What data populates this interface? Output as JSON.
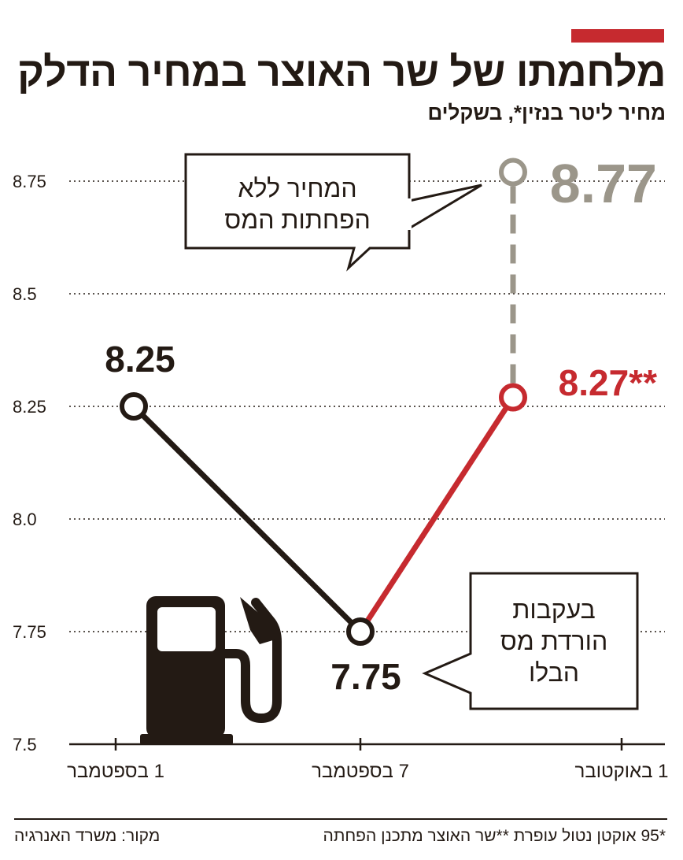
{
  "header": {
    "title": "מלחמתו של שר האוצר במחיר הדלק",
    "subtitle": "מחיר ליטר בנזין*, בשקלים",
    "accent_color": "#c62a2f"
  },
  "chart_data": {
    "type": "line",
    "categories": [
      "1 בספטמבר",
      "7 בספטמבר",
      "1 באוקטובר"
    ],
    "series": [
      {
        "values": [
          8.25,
          7.75,
          null
        ],
        "color": "#231a14"
      },
      {
        "values": [
          null,
          7.75,
          8.27
        ],
        "color": "#c62a2f"
      },
      {
        "values": [
          null,
          null,
          8.77
        ],
        "color": "#9b968a",
        "style": "dashed"
      }
    ],
    "data_labels": [
      {
        "text": "8.25",
        "color": "#231a14"
      },
      {
        "text": "7.75",
        "color": "#231a14"
      },
      {
        "text": "8.27**",
        "color": "#c62a2f"
      },
      {
        "text": "8.77",
        "color": "#9b968a"
      }
    ],
    "y_ticks": [
      "8.75",
      "8.5",
      "8.25",
      "8.0",
      "7.75",
      "7.5"
    ],
    "y_tick_values": [
      8.75,
      8.5,
      8.25,
      8.0,
      7.75,
      7.5
    ],
    "ylim": [
      7.5,
      8.8
    ],
    "grid": true,
    "annotations": [
      {
        "lines": [
          "המחיר ללא",
          "הפחתות המס"
        ]
      },
      {
        "lines": [
          "בעקבות",
          "הורדת מס",
          "הבלו"
        ]
      }
    ],
    "icon": "fuel-pump-icon"
  },
  "footer": {
    "source": "מקור: משרד האנרגיה",
    "note": "*95 אוקטן נטול עופרת **שר האוצר מתכנן הפחתה"
  }
}
